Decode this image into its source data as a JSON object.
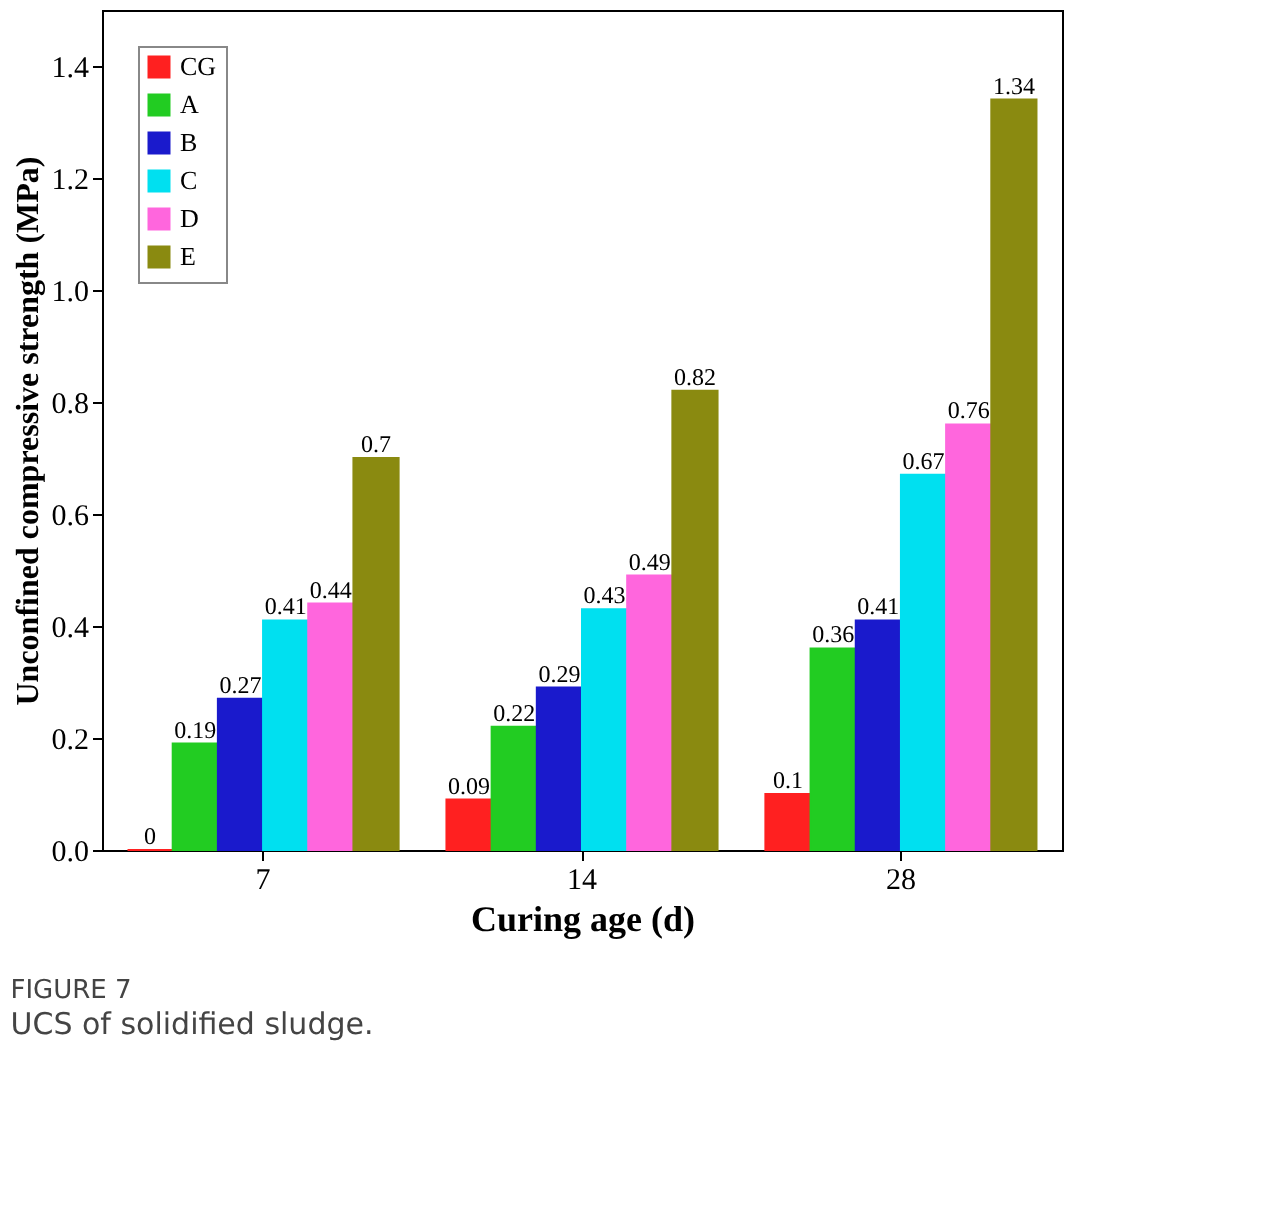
{
  "chart_data": {
    "type": "bar",
    "categories": [
      "7",
      "14",
      "28"
    ],
    "series": [
      {
        "name": "CG",
        "color": "#ff2020",
        "values": [
          0,
          0.09,
          0.1
        ]
      },
      {
        "name": "A",
        "color": "#22cc22",
        "values": [
          0.19,
          0.22,
          0.36
        ]
      },
      {
        "name": "B",
        "color": "#1a1acc",
        "values": [
          0.27,
          0.29,
          0.41
        ]
      },
      {
        "name": "C",
        "color": "#00e0f0",
        "values": [
          0.41,
          0.43,
          0.67
        ]
      },
      {
        "name": "D",
        "color": "#ff66dd",
        "values": [
          0.44,
          0.49,
          0.76
        ]
      },
      {
        "name": "E",
        "color": "#8a8a10",
        "values": [
          0.7,
          0.82,
          1.34
        ]
      }
    ],
    "xlabel": "Curing age (d)",
    "ylabel": "Unconfined compressive strength (MPa)",
    "ylim": [
      0,
      1.5
    ],
    "yticks": [
      {
        "value": 0,
        "label": "0.0"
      },
      {
        "value": 0.2,
        "label": "0.2"
      },
      {
        "value": 0.4,
        "label": "0.4"
      },
      {
        "value": 0.6,
        "label": "0.6"
      },
      {
        "value": 0.8,
        "label": "0.8"
      },
      {
        "value": 1.0,
        "label": "1.0"
      },
      {
        "value": 1.2,
        "label": "1.2"
      },
      {
        "value": 1.4,
        "label": "1.4"
      }
    ],
    "data_labels": true,
    "legend": "top left",
    "grid": false,
    "annotations": [
      "FIGURE 7",
      "UCS of solidified sludge."
    ]
  }
}
